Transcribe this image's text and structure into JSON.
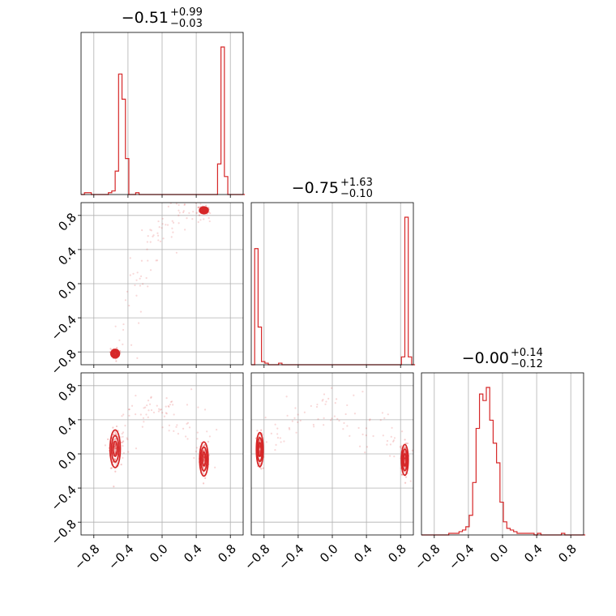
{
  "chart_data": {
    "type": "corner",
    "color": "#d62728",
    "grid": true,
    "panel_titles": [
      {
        "main": "−0.51",
        "sup": "+0.99",
        "sub": "−0.03"
      },
      {
        "main": "−0.75",
        "sup": "+1.63",
        "sub": "−0.10"
      },
      {
        "main": "−0.00",
        "sup": "+0.14",
        "sub": "−0.12"
      }
    ],
    "axis_range": [
      -0.95,
      0.95
    ],
    "x_tick_values": [
      -0.8,
      -0.4,
      0.0,
      0.4,
      0.8
    ],
    "x_tick_labels": [
      "−0.8",
      "−0.4",
      "0.0",
      "0.4",
      "0.8"
    ],
    "y_tick_values": [
      0.8,
      0.4,
      0.0,
      -0.4,
      -0.8
    ],
    "y_tick_labels": [
      "0.8",
      "0.4",
      "0.0",
      "−0.4",
      "−0.8"
    ],
    "histograms": [
      {
        "parameter": 1,
        "bin_start": -0.95,
        "bin_width": 0.04,
        "counts": [
          0,
          1,
          1,
          0,
          0,
          0,
          0,
          0,
          1,
          2,
          13,
          67,
          53,
          20,
          0,
          0,
          1,
          0,
          0,
          0,
          0,
          0,
          0,
          0,
          0,
          0,
          0,
          0,
          0,
          0,
          0,
          0,
          0,
          0,
          0,
          0,
          0,
          0,
          0,
          0,
          17,
          82,
          10,
          0,
          0,
          0,
          0,
          0
        ]
      },
      {
        "parameter": 2,
        "bin_start": -0.95,
        "bin_width": 0.04,
        "counts": [
          0,
          74,
          24,
          2,
          1,
          0,
          0,
          0,
          1,
          0,
          0,
          0,
          0,
          0,
          0,
          0,
          0,
          0,
          0,
          0,
          0,
          0,
          0,
          0,
          0,
          0,
          0,
          0,
          0,
          0,
          0,
          0,
          0,
          0,
          0,
          0,
          0,
          0,
          0,
          0,
          0,
          0,
          0,
          0,
          5,
          94,
          5,
          0
        ]
      },
      {
        "parameter": 3,
        "bin_start": -0.95,
        "bin_width": 0.04,
        "counts": [
          0,
          0,
          0,
          0,
          0,
          0,
          0,
          0,
          1,
          1,
          1,
          2,
          3,
          5,
          12,
          32,
          65,
          86,
          82,
          90,
          70,
          56,
          44,
          20,
          8,
          4,
          3,
          2,
          1,
          1,
          1,
          1,
          1,
          0,
          1,
          0,
          0,
          0,
          0,
          0,
          0,
          1,
          0,
          0,
          0,
          0,
          0,
          0
        ]
      }
    ],
    "scatter_2d": [
      {
        "x_param": 1,
        "y_param": 2,
        "modes": [
          {
            "x": -0.55,
            "y": -0.82,
            "sx": 0.025,
            "sy": 0.025
          },
          {
            "x": 0.49,
            "y": 0.86,
            "sx": 0.025,
            "sy": 0.02
          }
        ]
      },
      {
        "x_param": 1,
        "y_param": 3,
        "modes": [
          {
            "x": -0.55,
            "y": 0.06,
            "sx": 0.03,
            "sy": 0.11
          },
          {
            "x": 0.49,
            "y": -0.06,
            "sx": 0.025,
            "sy": 0.1
          }
        ]
      },
      {
        "x_param": 2,
        "y_param": 3,
        "modes": [
          {
            "x": -0.85,
            "y": 0.05,
            "sx": 0.02,
            "sy": 0.1
          },
          {
            "x": 0.85,
            "y": -0.07,
            "sx": 0.02,
            "sy": 0.09
          }
        ]
      }
    ]
  }
}
